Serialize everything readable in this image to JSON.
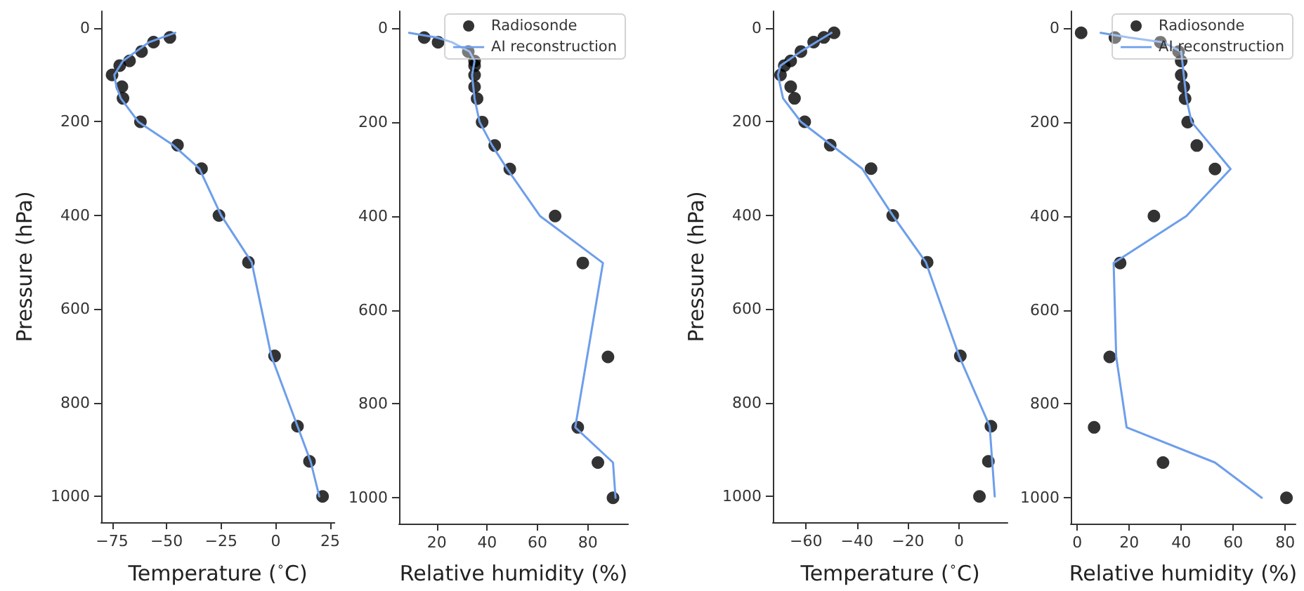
{
  "chart_data": [
    {
      "type": "scatter",
      "xlabel": "Temperature ($^{∘}$C)",
      "ylabel": "Pressure (hPa)",
      "xlim": [
        -80,
        27
      ],
      "ylim": [
        1055,
        -36
      ],
      "xticks": [
        -75,
        -50,
        -25,
        0,
        25
      ],
      "yticks": [
        0,
        200,
        400,
        600,
        800,
        1000
      ],
      "grid": false,
      "legend": false,
      "series": [
        {
          "type": "scatter",
          "color": "#000000",
          "marker": "circle",
          "x": [
            -48.5,
            -56,
            -61.5,
            -67,
            -71.5,
            -75,
            -70.5,
            -70,
            -62,
            -45,
            -34,
            -26,
            -12.5,
            -0.5,
            10,
            15.5,
            21.5
          ],
          "values": [
            20,
            30,
            50,
            70,
            80,
            100,
            125,
            150,
            200,
            250,
            300,
            400,
            500,
            700,
            850,
            925,
            1000
          ]
        },
        {
          "type": "line",
          "color": "#6d9eeb",
          "marker": "none",
          "x": [
            -46,
            -52,
            -58,
            -64,
            -70,
            -74,
            -73,
            -71,
            -63,
            -47,
            -35,
            -25,
            -11,
            -2,
            10,
            16,
            20
          ],
          "values": [
            10,
            20,
            30,
            50,
            70,
            100,
            125,
            150,
            200,
            250,
            300,
            400,
            500,
            700,
            850,
            925,
            1000
          ]
        }
      ]
    },
    {
      "type": "scatter",
      "xlabel": "Relative humidity (%)",
      "xlim": [
        5,
        96
      ],
      "ylim": [
        1055,
        -36
      ],
      "xticks": [
        20,
        40,
        60,
        80
      ],
      "yticks": [
        0,
        200,
        400,
        600,
        800,
        1000
      ],
      "grid": false,
      "legend": "top right",
      "series": [
        {
          "type": "scatter",
          "name": "Radiosonde",
          "color": "#000000",
          "marker": "circle",
          "x": [
            15,
            20.5,
            32.5,
            35,
            35,
            35,
            35,
            36,
            38,
            43,
            49,
            67,
            78,
            88,
            76,
            84,
            90
          ],
          "values": [
            20,
            30,
            50,
            70,
            80,
            100,
            125,
            150,
            200,
            250,
            300,
            400,
            500,
            700,
            850,
            925,
            1000
          ]
        },
        {
          "type": "line",
          "name": "AI reconstruction",
          "color": "#6d9eeb",
          "marker": "none",
          "x": [
            9,
            20,
            26,
            33,
            35,
            34,
            35,
            37,
            42,
            48,
            61,
            86,
            75,
            90,
            91
          ],
          "values": [
            10,
            20,
            30,
            50,
            70,
            100,
            150,
            200,
            250,
            300,
            400,
            500,
            850,
            925,
            1000
          ]
        }
      ]
    },
    {
      "type": "scatter",
      "xlabel": "Temperature ($^{∘}$C)",
      "ylabel": "Pressure (hPa)",
      "xlim": [
        -73,
        19
      ],
      "ylim": [
        1055,
        -36
      ],
      "xticks": [
        -60,
        -40,
        -20,
        0
      ],
      "yticks": [
        0,
        200,
        400,
        600,
        800,
        1000
      ],
      "grid": false,
      "legend": false,
      "series": [
        {
          "type": "scatter",
          "color": "#000000",
          "marker": "circle",
          "x": [
            -49,
            -53,
            -57,
            -62,
            -66,
            -68.5,
            -70,
            -66,
            -64.5,
            -60.5,
            -50.5,
            -34.5,
            -26,
            -12.5,
            0.5,
            12.5,
            11.5,
            8
          ],
          "values": [
            10,
            20,
            30,
            50,
            70,
            80,
            100,
            125,
            150,
            200,
            250,
            300,
            400,
            500,
            700,
            850,
            925,
            1000
          ]
        },
        {
          "type": "line",
          "color": "#6d9eeb",
          "marker": "none",
          "x": [
            -50,
            -56,
            -62,
            -70,
            -71,
            -69,
            -62,
            -38,
            -26,
            -13,
            0,
            12,
            14
          ],
          "values": [
            10,
            30,
            50,
            80,
            100,
            150,
            200,
            300,
            400,
            500,
            700,
            850,
            1000
          ]
        }
      ]
    },
    {
      "type": "scatter",
      "xlabel": "Relative humidity (%)",
      "xlim": [
        -2.5,
        84
      ],
      "ylim": [
        1055,
        -36
      ],
      "xticks": [
        0,
        20,
        40,
        60,
        80
      ],
      "yticks": [
        0,
        200,
        400,
        600,
        800,
        1000
      ],
      "grid": false,
      "legend": "top right",
      "series": [
        {
          "type": "scatter",
          "name": "Radiosonde",
          "color": "#000000",
          "marker": "circle",
          "x": [
            1.5,
            14.5,
            32,
            39,
            40,
            40,
            41,
            41.5,
            42.5,
            46,
            53,
            29.5,
            16.5,
            12.5,
            6.5,
            33,
            80.5
          ],
          "values": [
            10,
            20,
            30,
            50,
            70,
            100,
            125,
            150,
            200,
            250,
            300,
            400,
            500,
            700,
            850,
            925,
            1000
          ]
        },
        {
          "type": "line",
          "name": "AI reconstruction",
          "color": "#6d9eeb",
          "marker": "none",
          "x": [
            9,
            20,
            33,
            40,
            41,
            42,
            44,
            59,
            42,
            14,
            15,
            19,
            53,
            71
          ],
          "values": [
            10,
            20,
            30,
            50,
            100,
            150,
            200,
            300,
            400,
            500,
            700,
            850,
            925,
            1000
          ]
        }
      ]
    }
  ]
}
